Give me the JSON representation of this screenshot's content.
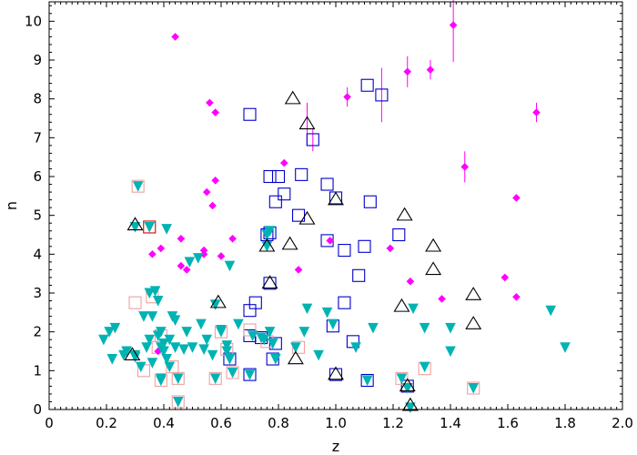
{
  "chart_data": {
    "type": "scatter",
    "title": "",
    "xlabel": "z",
    "ylabel": "n",
    "xlim": [
      0,
      2.0
    ],
    "ylim": [
      0,
      10.5
    ],
    "x_ticks": [
      "0",
      "0.2",
      "0.4",
      "0.6",
      "0.8",
      "1.0",
      "1.2",
      "1.4",
      "1.6",
      "1.8",
      "2.0"
    ],
    "x_tick_values": [
      0,
      0.2,
      0.4,
      0.6,
      0.8,
      1.0,
      1.2,
      1.4,
      1.6,
      1.8,
      2.0
    ],
    "y_ticks": [
      "0",
      "1",
      "2",
      "3",
      "4",
      "5",
      "6",
      "7",
      "8",
      "9",
      "10"
    ],
    "y_tick_values": [
      0,
      1,
      2,
      3,
      4,
      5,
      6,
      7,
      8,
      9,
      10
    ],
    "grid": false,
    "legend": "none",
    "colors": {
      "magenta": "#ff00ff",
      "cyan": "#00b3b3",
      "blue_square": "#0000cc",
      "red_square": "#dd0000",
      "pink_square": "#f0a0a0",
      "triangle_outline": "#000000"
    },
    "series": [
      {
        "marker": "diamond",
        "color": "#ff00ff",
        "points": [
          [
            0.44,
            9.6
          ],
          [
            0.56,
            7.9
          ],
          [
            0.58,
            7.65
          ],
          [
            0.58,
            5.9
          ],
          [
            0.55,
            5.6
          ],
          [
            0.57,
            5.25
          ],
          [
            0.39,
            4.15
          ],
          [
            0.36,
            4.0
          ],
          [
            0.46,
            4.4
          ],
          [
            0.54,
            4.1
          ],
          [
            0.54,
            4.0
          ],
          [
            0.64,
            4.4
          ],
          [
            0.46,
            3.7
          ],
          [
            0.48,
            3.6
          ],
          [
            0.6,
            3.95
          ],
          [
            0.38,
            1.5
          ],
          [
            0.82,
            6.35
          ],
          [
            0.87,
            3.6
          ],
          [
            0.98,
            4.35
          ],
          [
            1.19,
            4.15
          ],
          [
            1.26,
            3.3
          ],
          [
            1.37,
            2.85
          ],
          [
            1.45,
            6.25
          ],
          [
            1.41,
            9.9
          ],
          [
            1.25,
            8.7
          ],
          [
            1.33,
            8.75
          ],
          [
            1.04,
            8.05
          ],
          [
            1.7,
            7.65
          ],
          [
            1.63,
            5.45
          ],
          [
            1.59,
            3.4
          ],
          [
            1.63,
            2.9
          ]
        ],
        "error_bars": [
          [
            1.41,
            9.9,
            0.95
          ],
          [
            1.25,
            8.7,
            0.4
          ],
          [
            1.45,
            6.25,
            0.4
          ],
          [
            1.16,
            8.1,
            0.7
          ],
          [
            1.33,
            8.75,
            0.25
          ],
          [
            1.04,
            8.05,
            0.25
          ],
          [
            1.7,
            7.65,
            0.25
          ],
          [
            0.9,
            7.35,
            0.55
          ],
          [
            0.92,
            6.95,
            0.3
          ]
        ]
      },
      {
        "marker": "triangle-down",
        "color": "#00b3b3",
        "points": [
          [
            0.19,
            1.8
          ],
          [
            0.21,
            2.0
          ],
          [
            0.23,
            2.1
          ],
          [
            0.22,
            1.3
          ],
          [
            0.27,
            1.5
          ],
          [
            0.26,
            1.4
          ],
          [
            0.3,
            1.35
          ],
          [
            0.32,
            1.1
          ],
          [
            0.33,
            2.4
          ],
          [
            0.34,
            1.6
          ],
          [
            0.36,
            1.2
          ],
          [
            0.35,
            1.8
          ],
          [
            0.35,
            3.0
          ],
          [
            0.37,
            3.05
          ],
          [
            0.38,
            2.8
          ],
          [
            0.39,
            2.0
          ],
          [
            0.38,
            1.9
          ],
          [
            0.39,
            1.6
          ],
          [
            0.4,
            1.5
          ],
          [
            0.4,
            1.7
          ],
          [
            0.41,
            1.3
          ],
          [
            0.42,
            1.8
          ],
          [
            0.42,
            1.1
          ],
          [
            0.43,
            2.4
          ],
          [
            0.44,
            2.3
          ],
          [
            0.44,
            1.6
          ],
          [
            0.45,
            0.8
          ],
          [
            0.47,
            1.55
          ],
          [
            0.48,
            2.0
          ],
          [
            0.49,
            3.8
          ],
          [
            0.5,
            1.6
          ],
          [
            0.52,
            3.9
          ],
          [
            0.53,
            2.2
          ],
          [
            0.54,
            1.55
          ],
          [
            0.55,
            1.8
          ],
          [
            0.57,
            1.4
          ],
          [
            0.58,
            2.7
          ],
          [
            0.6,
            2.0
          ],
          [
            0.6,
            2.05
          ],
          [
            0.62,
            1.5
          ],
          [
            0.62,
            1.65
          ],
          [
            0.63,
            3.7
          ],
          [
            0.63,
            1.3
          ],
          [
            0.64,
            0.95
          ],
          [
            0.66,
            2.2
          ],
          [
            0.71,
            1.9
          ],
          [
            0.74,
            1.85
          ],
          [
            0.75,
            1.8
          ],
          [
            0.78,
            1.7
          ],
          [
            0.77,
            2.0
          ],
          [
            0.79,
            1.3
          ],
          [
            0.89,
            2.0
          ],
          [
            0.9,
            2.6
          ],
          [
            0.86,
            1.6
          ],
          [
            0.94,
            1.4
          ],
          [
            0.97,
            2.5
          ],
          [
            0.99,
            2.2
          ],
          [
            1.07,
            1.6
          ],
          [
            1.13,
            2.1
          ],
          [
            1.27,
            2.6
          ],
          [
            1.31,
            2.1
          ],
          [
            1.31,
            1.1
          ],
          [
            1.4,
            2.1
          ],
          [
            1.4,
            1.5
          ],
          [
            1.75,
            2.55
          ],
          [
            1.8,
            1.6
          ],
          [
            0.3,
            1.4
          ],
          [
            0.3,
            4.7
          ],
          [
            0.41,
            4.65
          ],
          [
            0.35,
            4.7
          ],
          [
            0.36,
            2.4
          ],
          [
            0.45,
            0.2
          ],
          [
            0.39,
            0.75
          ],
          [
            0.39,
            0.8
          ],
          [
            0.58,
            0.8
          ],
          [
            0.7,
            0.9
          ],
          [
            1.11,
            0.75
          ],
          [
            1.23,
            0.8
          ],
          [
            1.25,
            0.55
          ],
          [
            1.26,
            0.05
          ],
          [
            1.48,
            0.55
          ],
          [
            0.31,
            5.75
          ],
          [
            0.77,
            4.6
          ],
          [
            0.76,
            4.5
          ],
          [
            0.76,
            4.2
          ]
        ]
      },
      {
        "marker": "open-square",
        "color": "#0000cc",
        "points": [
          [
            0.7,
            7.6
          ],
          [
            1.11,
            8.35
          ],
          [
            1.16,
            8.1
          ],
          [
            0.92,
            6.95
          ],
          [
            0.77,
            6.0
          ],
          [
            0.8,
            6.0
          ],
          [
            0.88,
            6.05
          ],
          [
            0.82,
            5.55
          ],
          [
            0.79,
            5.35
          ],
          [
            0.97,
            5.8
          ],
          [
            1.0,
            5.45
          ],
          [
            1.12,
            5.35
          ],
          [
            0.87,
            5.0
          ],
          [
            0.77,
            4.55
          ],
          [
            0.97,
            4.35
          ],
          [
            1.03,
            4.1
          ],
          [
            1.1,
            4.2
          ],
          [
            1.22,
            4.5
          ],
          [
            1.08,
            3.45
          ],
          [
            1.03,
            2.75
          ],
          [
            0.72,
            2.75
          ],
          [
            0.7,
            2.55
          ],
          [
            0.77,
            3.25
          ],
          [
            0.99,
            2.15
          ],
          [
            0.7,
            1.9
          ],
          [
            0.74,
            1.85
          ],
          [
            0.79,
            1.7
          ],
          [
            1.06,
            1.75
          ],
          [
            0.63,
            1.3
          ],
          [
            0.78,
            1.3
          ],
          [
            0.7,
            0.9
          ],
          [
            1.11,
            0.75
          ],
          [
            1.0,
            0.9
          ],
          [
            1.25,
            0.6
          ],
          [
            0.76,
            4.5
          ]
        ]
      },
      {
        "marker": "open-square",
        "color": "#dd0000",
        "points": [
          [
            0.35,
            4.7
          ]
        ]
      },
      {
        "marker": "open-square",
        "color": "#f0a0a0",
        "points": [
          [
            0.31,
            5.75
          ],
          [
            0.3,
            2.75
          ],
          [
            0.36,
            2.9
          ],
          [
            0.33,
            1.0
          ],
          [
            0.38,
            1.6
          ],
          [
            0.39,
            0.75
          ],
          [
            0.39,
            1.9
          ],
          [
            0.43,
            1.1
          ],
          [
            0.45,
            0.8
          ],
          [
            0.45,
            0.2
          ],
          [
            0.58,
            0.8
          ],
          [
            0.62,
            1.55
          ],
          [
            0.6,
            2.0
          ],
          [
            0.64,
            0.95
          ],
          [
            0.87,
            1.6
          ],
          [
            1.23,
            0.8
          ],
          [
            1.31,
            1.05
          ],
          [
            1.48,
            0.55
          ],
          [
            0.7,
            2.05
          ],
          [
            0.76,
            1.75
          ]
        ]
      },
      {
        "marker": "open-triangle-up",
        "color": "#000000",
        "points": [
          [
            0.85,
            8.0
          ],
          [
            0.9,
            7.35
          ],
          [
            0.9,
            4.9
          ],
          [
            1.0,
            5.4
          ],
          [
            1.24,
            5.0
          ],
          [
            0.84,
            4.25
          ],
          [
            0.76,
            4.2
          ],
          [
            0.3,
            4.75
          ],
          [
            0.59,
            2.75
          ],
          [
            0.77,
            3.25
          ],
          [
            1.34,
            4.2
          ],
          [
            1.34,
            3.6
          ],
          [
            1.48,
            2.95
          ],
          [
            1.48,
            2.2
          ],
          [
            1.23,
            2.65
          ],
          [
            0.29,
            1.4
          ],
          [
            0.86,
            1.3
          ],
          [
            1.0,
            0.9
          ],
          [
            1.25,
            0.6
          ],
          [
            1.26,
            0.1
          ]
        ]
      }
    ]
  }
}
